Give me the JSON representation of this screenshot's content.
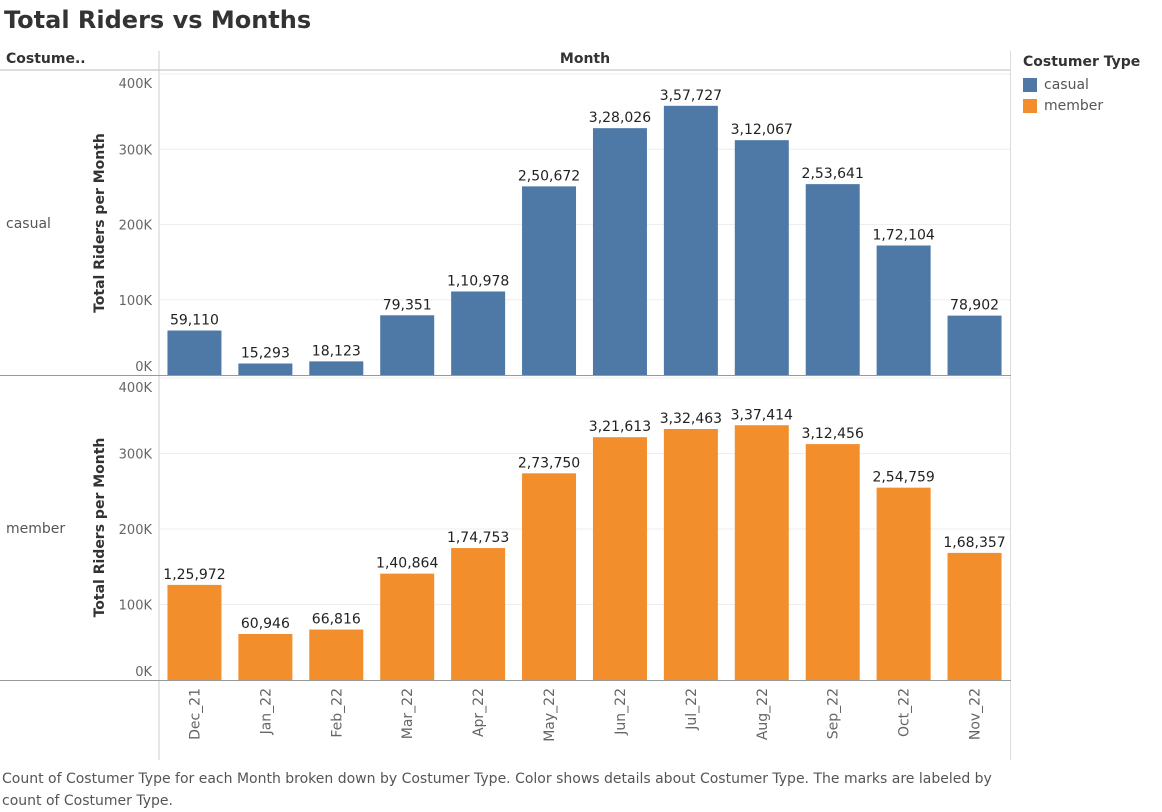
{
  "title": "Total Riders vs Months",
  "row_header": "Costume..",
  "column_header": "Month",
  "caption": "Count of Costumer Type for each Month broken down by Costumer Type.  Color shows details about Costumer Type.  The marks are labeled by count of Costumer Type.",
  "legend": {
    "title": "Costumer Type",
    "items": [
      {
        "label": "casual",
        "color": "#4e79a7"
      },
      {
        "label": "member",
        "color": "#f28e2b"
      }
    ]
  },
  "chart_data": {
    "type": "bar",
    "categories": [
      "Dec_21",
      "Jan_22",
      "Feb_22",
      "Mar_22",
      "Apr_22",
      "May_22",
      "Jun_22",
      "Jul_22",
      "Aug_22",
      "Sep_22",
      "Oct_22",
      "Nov_22"
    ],
    "ylabel": "Total Riders per Month",
    "ylim": [
      0,
      400000
    ],
    "y_ticks": [
      "0K",
      "100K",
      "200K",
      "300K",
      "400K"
    ],
    "grid": true,
    "legend_position": "top-right",
    "series": [
      {
        "name": "casual",
        "color": "#4e79a7",
        "values": [
          59110,
          15293,
          18123,
          79351,
          110978,
          250672,
          328026,
          357727,
          312067,
          253641,
          172104,
          78902
        ],
        "labels": [
          "59,110",
          "15,293",
          "18,123",
          "79,351",
          "1,10,978",
          "2,50,672",
          "3,28,026",
          "3,57,727",
          "3,12,067",
          "2,53,641",
          "1,72,104",
          "78,902"
        ]
      },
      {
        "name": "member",
        "color": "#f28e2b",
        "values": [
          125972,
          60946,
          66816,
          140864,
          174753,
          273750,
          321613,
          332463,
          337414,
          312456,
          254759,
          168357
        ],
        "labels": [
          "1,25,972",
          "60,946",
          "66,816",
          "1,40,864",
          "1,74,753",
          "2,73,750",
          "3,21,613",
          "3,32,463",
          "3,37,414",
          "3,12,456",
          "2,54,759",
          "1,68,357"
        ]
      }
    ]
  }
}
